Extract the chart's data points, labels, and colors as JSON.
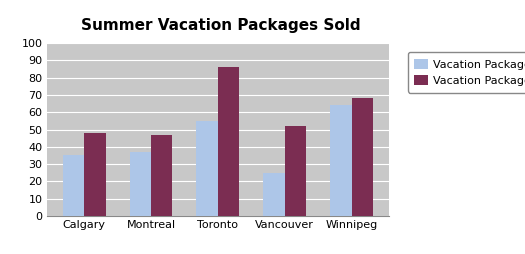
{
  "title": "Summer Vacation Packages Sold",
  "categories": [
    "Calgary",
    "Montreal",
    "Toronto",
    "Vancouver",
    "Winnipeg"
  ],
  "series": [
    {
      "name": "Vacation Package A",
      "values": [
        35,
        37,
        55,
        25,
        64
      ],
      "color": "#adc6e8"
    },
    {
      "name": "Vacation Package B",
      "values": [
        48,
        47,
        86,
        52,
        68
      ],
      "color": "#7b2d52"
    }
  ],
  "ylim": [
    0,
    100
  ],
  "yticks": [
    0,
    10,
    20,
    30,
    40,
    50,
    60,
    70,
    80,
    90,
    100
  ],
  "plot_area_color": "#c8c8c8",
  "outer_bg": "#ffffff",
  "bar_width": 0.32,
  "title_fontsize": 11,
  "tick_fontsize": 8,
  "legend_fontsize": 8
}
